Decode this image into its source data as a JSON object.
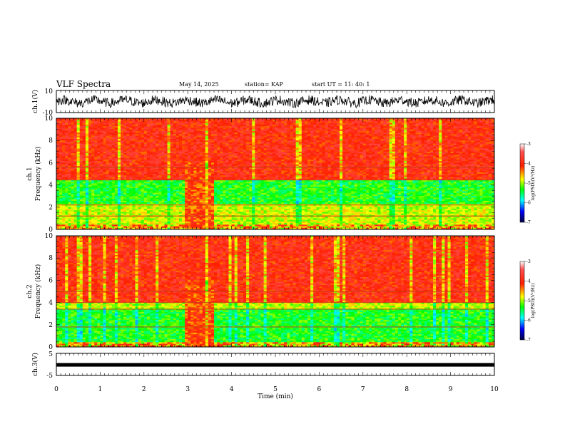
{
  "header": {
    "title": "VLF Spectra",
    "date": "May 14, 2025",
    "station": "station= KAP",
    "start_time": "start  UT  =   11: 40: 1"
  },
  "chart_data": [
    {
      "type": "line",
      "panel": "ch1-waveform",
      "ylabel": "ch.1(V)",
      "ylim": [
        -10,
        10
      ],
      "yticks": [
        "10",
        "-10"
      ],
      "xlim": [
        0,
        10
      ],
      "series_color": "#000000"
    },
    {
      "type": "heatmap",
      "panel": "ch1-spectrogram",
      "ylabel": "ch.1\nFrequency (kHz)",
      "ylim": [
        0,
        10
      ],
      "yticks": [
        "0",
        "2",
        "4",
        "6",
        "8",
        "10"
      ],
      "xlim": [
        0,
        10
      ],
      "colorbar": {
        "label": "log(PSD)(V²/Hz)",
        "range": [
          -7,
          -3
        ],
        "ticks": [
          "-3",
          "-4",
          "-5",
          "-6",
          "-7"
        ]
      },
      "features": {
        "high_intensity_band_khz": [
          4.5,
          10
        ],
        "low_intensity_band_khz": [
          2.3,
          4.4
        ],
        "broadband_burst_min": [
          2.95,
          3.6
        ]
      }
    },
    {
      "type": "heatmap",
      "panel": "ch2-spectrogram",
      "ylabel": "ch.2\nFrequency (kHz)",
      "ylim": [
        0,
        10
      ],
      "yticks": [
        "0",
        "2",
        "4",
        "6",
        "8",
        "10"
      ],
      "xlim": [
        0,
        10
      ],
      "colorbar": {
        "label": "log(PSD)(V²/Hz)",
        "range": [
          -7,
          -3
        ],
        "ticks": [
          "-3",
          "-4",
          "-5",
          "-6",
          "-7"
        ]
      },
      "features": {
        "high_intensity_band_khz": [
          4.0,
          10
        ],
        "low_intensity_band_khz": [
          0.5,
          3.4
        ],
        "broadband_burst_min": [
          2.95,
          3.6
        ]
      }
    },
    {
      "type": "line",
      "panel": "ch3-waveform",
      "ylabel": "ch.3(V)",
      "ylim": [
        -5,
        5
      ],
      "yticks": [
        "5",
        "-5"
      ],
      "xlim": [
        0,
        10
      ],
      "level_v": -0.2
    }
  ],
  "xaxis": {
    "label": "Time (min)",
    "ticks": [
      "0",
      "1",
      "2",
      "3",
      "4",
      "5",
      "6",
      "7",
      "8",
      "9",
      "10"
    ]
  }
}
